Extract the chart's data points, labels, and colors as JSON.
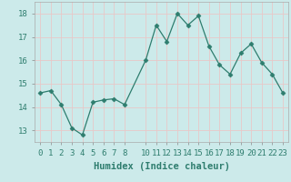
{
  "x": [
    0,
    1,
    2,
    3,
    4,
    5,
    6,
    7,
    8,
    10,
    11,
    12,
    13,
    14,
    15,
    16,
    17,
    18,
    19,
    20,
    21,
    22,
    23
  ],
  "y": [
    14.6,
    14.7,
    14.1,
    13.1,
    12.8,
    14.2,
    14.3,
    14.35,
    14.1,
    16.0,
    17.5,
    16.8,
    18.0,
    17.5,
    17.9,
    16.6,
    15.8,
    15.4,
    16.3,
    16.7,
    15.9,
    15.4,
    14.6
  ],
  "line_color": "#2e7d6e",
  "marker": "D",
  "marker_size": 2.5,
  "bg_color": "#cceaea",
  "grid_color": "#e8c8c8",
  "xlabel": "Humidex (Indice chaleur)",
  "ylim": [
    12.5,
    18.5
  ],
  "xlim": [
    -0.5,
    23.5
  ],
  "yticks": [
    13,
    14,
    15,
    16,
    17,
    18
  ],
  "xticks": [
    0,
    1,
    2,
    3,
    4,
    5,
    6,
    7,
    8,
    10,
    11,
    12,
    13,
    14,
    15,
    16,
    17,
    18,
    19,
    20,
    21,
    22,
    23
  ],
  "xtick_labels": [
    "0",
    "1",
    "2",
    "3",
    "4",
    "5",
    "6",
    "7",
    "8",
    "10",
    "11",
    "12",
    "13",
    "14",
    "15",
    "16",
    "17",
    "18",
    "19",
    "20",
    "21",
    "22",
    "23"
  ],
  "xlabel_fontsize": 7.5,
  "tick_fontsize": 6.5
}
